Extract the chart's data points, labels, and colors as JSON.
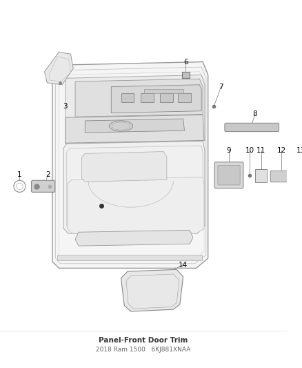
{
  "title": "Panel-Front Door Trim",
  "subtitle": "2018 Ram 1500",
  "part_number": "6KJ881XNAA",
  "bg": "#ffffff",
  "lc": "#b0b0b0",
  "dc": "#707070",
  "tc": "#000000",
  "fig_w": 4.38,
  "fig_h": 5.33,
  "dpi": 100,
  "label_font": 7.5,
  "title_font": 7.5,
  "subtitle_font": 6.5
}
